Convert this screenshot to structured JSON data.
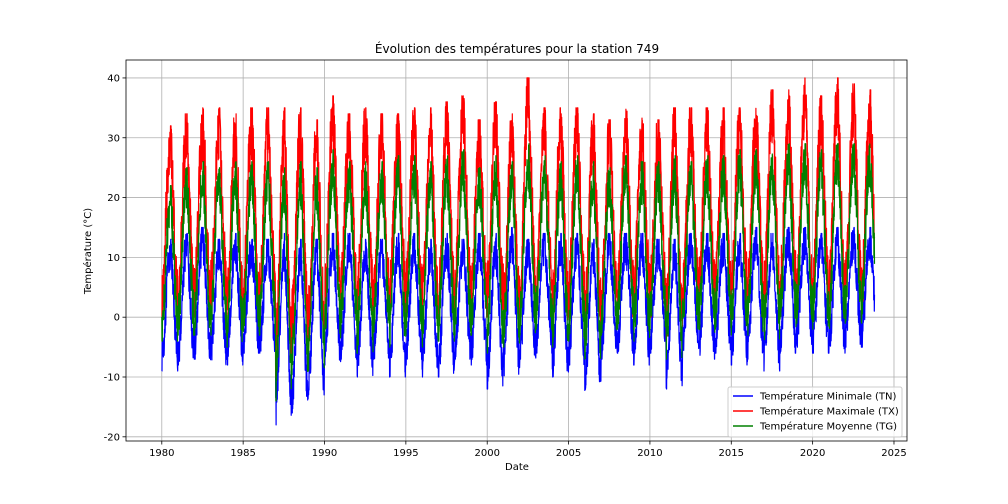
{
  "chart_data": {
    "type": "line",
    "title": "Évolution des températures pour la station 749",
    "xlabel": "Date",
    "ylabel": "Température (°C)",
    "xlim": [
      1977.8,
      2025.8
    ],
    "ylim": [
      -20.7,
      43.0
    ],
    "x_ticks": [
      1980,
      1985,
      1990,
      1995,
      2000,
      2005,
      2010,
      2015,
      2020,
      2025
    ],
    "y_ticks": [
      -20,
      -10,
      0,
      10,
      20,
      30,
      40
    ],
    "grid": true,
    "legend_position": "lower-right",
    "x_start": 1980.0,
    "x_end": 2023.8,
    "series": [
      {
        "name": "Température Minimale (TN)",
        "color": "#0000ff",
        "annual_peaks": [
          13,
          14,
          15,
          13,
          14,
          13,
          13,
          14,
          13,
          13,
          14,
          14,
          13,
          13,
          14,
          14,
          13,
          14,
          13,
          14,
          14,
          15,
          13,
          14,
          14,
          14,
          13,
          14,
          14,
          14,
          13,
          13,
          14,
          14,
          14,
          14,
          15,
          14,
          15,
          15,
          14,
          15,
          15,
          15
        ],
        "annual_troughs": [
          -9,
          -8,
          -7,
          -8,
          -8,
          -6,
          -6,
          -18,
          -16,
          -13,
          -8,
          -7,
          -10,
          -7,
          -10,
          -8,
          -10,
          -10,
          -7,
          -8,
          -12,
          -10,
          -7,
          -6,
          -10,
          -8,
          -13,
          -7,
          -6,
          -8,
          -6,
          -12,
          -6,
          -7,
          -6,
          -8,
          -7,
          -9,
          -6,
          -5,
          -6,
          -6,
          -5,
          -5
        ]
      },
      {
        "name": "Température Maximale (TX)",
        "color": "#ff0000",
        "annual_peaks": [
          32,
          34,
          35,
          35,
          34,
          35,
          35,
          35,
          35,
          33,
          37,
          34,
          35,
          34,
          34,
          35,
          35,
          36,
          37,
          33,
          36,
          34,
          40,
          35,
          35,
          35,
          34,
          33,
          35,
          34,
          33,
          35,
          35,
          35,
          35,
          35,
          36,
          38,
          38,
          40,
          37,
          40,
          39,
          38
        ],
        "annual_troughs": [
          0,
          -1,
          0,
          1,
          -2,
          0,
          0,
          -10,
          -5,
          -4,
          0,
          2,
          0,
          0,
          1,
          0,
          -1,
          0,
          1,
          0,
          0,
          -2,
          0,
          1,
          -1,
          0,
          -3,
          0,
          0,
          1,
          0,
          -4,
          0,
          0,
          0,
          1,
          0,
          0,
          1,
          0,
          0,
          0,
          1,
          0
        ]
      },
      {
        "name": "Température Moyenne (TG)",
        "color": "#008000",
        "annual_peaks": [
          22,
          25,
          26,
          25,
          26,
          26,
          26,
          25,
          26,
          25,
          28,
          26,
          26,
          26,
          27,
          27,
          26,
          27,
          28,
          25,
          27,
          26,
          29,
          27,
          26,
          27,
          26,
          25,
          27,
          26,
          26,
          27,
          26,
          27,
          27,
          28,
          28,
          28,
          29,
          29,
          28,
          29,
          29,
          29
        ],
        "annual_troughs": [
          -4,
          -3,
          -3,
          -3,
          -5,
          -3,
          -3,
          -14,
          -10,
          -9,
          -4,
          -2,
          -6,
          -3,
          -5,
          -3,
          -5,
          -4,
          -3,
          -3,
          -6,
          -5,
          -3,
          -2,
          -5,
          -4,
          -7,
          -3,
          -2,
          -4,
          -2,
          -7,
          -2,
          -3,
          -2,
          -3,
          -3,
          -4,
          -2,
          -1,
          -2,
          -2,
          -1,
          -1
        ]
      }
    ]
  }
}
